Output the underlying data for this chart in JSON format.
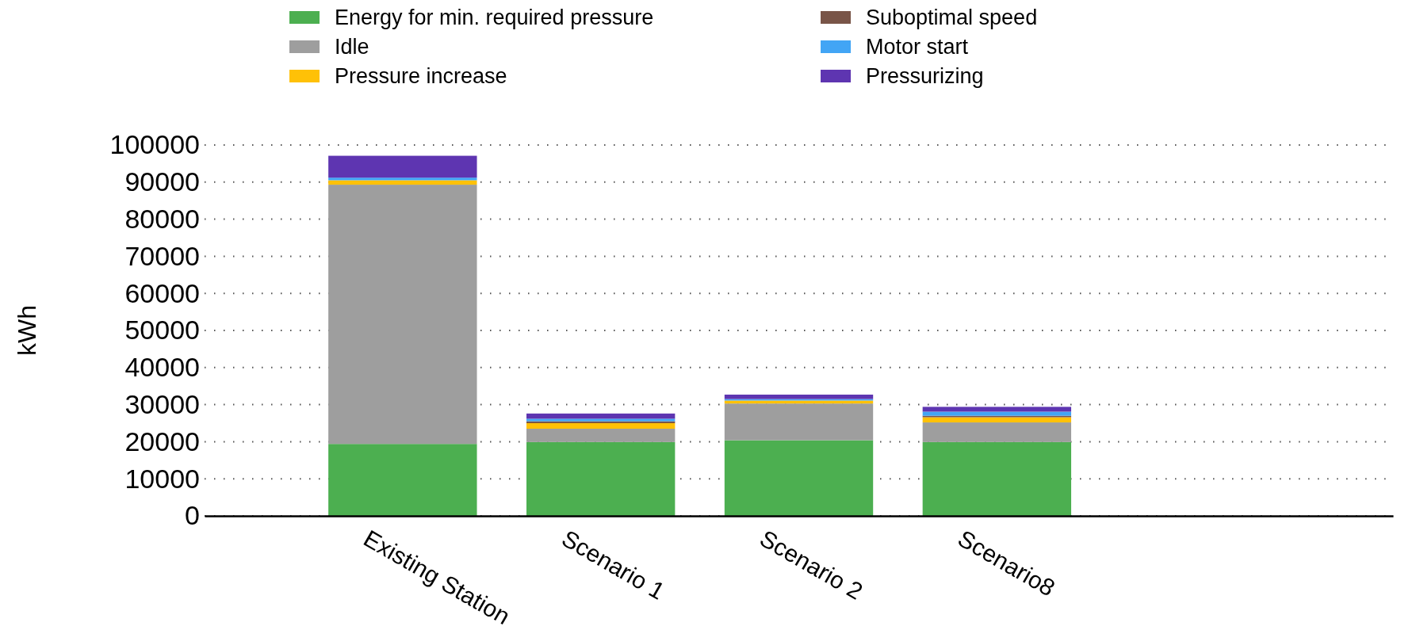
{
  "chart_data": {
    "type": "bar",
    "stacked": true,
    "ylabel": "kWh",
    "categories": [
      null,
      "Existing Station",
      "Scenario 1",
      "Scenario 2",
      "Scenario8",
      null,
      null
    ],
    "series": [
      {
        "name": "Energy for min. required pressure",
        "color": "#4caf50",
        "values": [
          null,
          19400,
          19900,
          20400,
          19900,
          null,
          null
        ]
      },
      {
        "name": "Idle",
        "color": "#9e9e9e",
        "values": [
          null,
          69900,
          3600,
          9900,
          5300,
          null,
          null
        ]
      },
      {
        "name": "Pressure increase",
        "color": "#ffc107",
        "values": [
          null,
          1200,
          1500,
          800,
          1400,
          null,
          null
        ]
      },
      {
        "name": "Suboptimal speed",
        "color": "#795548",
        "values": [
          null,
          null,
          500,
          null,
          400,
          null,
          null
        ]
      },
      {
        "name": "Motor start",
        "color": "#42a5f5",
        "values": [
          null,
          700,
          700,
          400,
          1100,
          null,
          null
        ]
      },
      {
        "name": "Pressurizing",
        "color": "#5e35b1",
        "values": [
          null,
          5900,
          1400,
          1200,
          1300,
          null,
          null
        ]
      }
    ],
    "ylim": [
      0,
      100000
    ],
    "yticks": [
      0,
      10000,
      20000,
      30000,
      40000,
      50000,
      60000,
      70000,
      80000,
      90000,
      100000
    ],
    "grid": "y",
    "legend": "top"
  }
}
